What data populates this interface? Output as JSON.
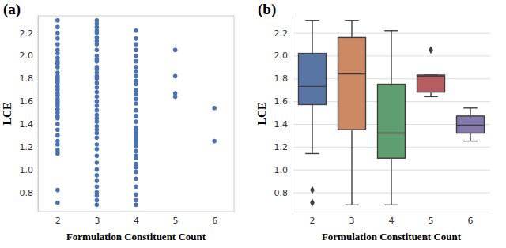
{
  "chart_data": [
    {
      "type": "strip",
      "title": "(a)",
      "x_label": "Formulation Constituent Count",
      "y_label": "LCE",
      "categories": [
        "2",
        "3",
        "4",
        "5",
        "6"
      ],
      "values": [
        [
          2.31,
          2.25,
          2.2,
          2.15,
          2.1,
          2.05,
          2.02,
          1.98,
          1.95,
          1.93,
          1.9,
          1.85,
          1.82,
          1.8,
          1.78,
          1.76,
          1.73,
          1.7,
          1.67,
          1.65,
          1.62,
          1.6,
          1.58,
          1.56,
          1.53,
          1.5,
          1.47,
          1.45,
          1.4,
          1.35,
          1.3,
          1.25,
          1.22,
          1.17,
          1.14,
          0.82,
          0.71
        ],
        [
          2.31,
          2.28,
          2.25,
          2.22,
          2.2,
          2.16,
          2.13,
          2.1,
          2.05,
          2.0,
          1.97,
          1.95,
          1.9,
          1.88,
          1.85,
          1.82,
          1.8,
          1.76,
          1.72,
          1.68,
          1.64,
          1.6,
          1.56,
          1.52,
          1.48,
          1.45,
          1.42,
          1.38,
          1.35,
          1.32,
          1.28,
          1.22,
          1.18,
          1.12,
          1.06,
          1.0,
          0.95,
          0.9,
          0.85,
          0.8,
          0.77,
          0.73,
          0.69
        ],
        [
          2.22,
          2.15,
          2.1,
          2.05,
          2.0,
          1.95,
          1.9,
          1.86,
          1.82,
          1.78,
          1.75,
          1.7,
          1.66,
          1.62,
          1.58,
          1.52,
          1.47,
          1.42,
          1.37,
          1.35,
          1.32,
          1.3,
          1.28,
          1.26,
          1.24,
          1.22,
          1.2,
          1.16,
          1.12,
          1.1,
          1.05,
          1.02,
          0.98,
          0.92,
          0.85,
          0.78,
          0.73,
          0.69
        ],
        [
          2.05,
          1.82,
          1.67,
          1.64
        ],
        [
          1.54,
          1.25
        ]
      ],
      "color": "#4c72b0",
      "ylim": [
        0.63,
        2.35
      ],
      "yticks": [
        0.8,
        {
          "value": 1,
          "label": "1.0"
        },
        1.2,
        1.4,
        1.6,
        1.8,
        {
          "value": 2,
          "label": "2.0"
        },
        2.2
      ],
      "grid": false
    },
    {
      "type": "box",
      "title": "(b)",
      "x_label": "Formulation Constituent Count",
      "y_label": "LCE",
      "categories": [
        "2",
        "3",
        "4",
        "5",
        "6"
      ],
      "whisker_low": [
        1.14,
        0.69,
        0.69,
        1.64,
        1.25
      ],
      "q1": [
        1.57,
        1.35,
        1.1,
        1.68,
        1.32
      ],
      "median": [
        1.73,
        1.84,
        1.32,
        1.82,
        1.39
      ],
      "q3": [
        2.02,
        2.16,
        1.75,
        1.83,
        1.47
      ],
      "whisker_high": [
        2.31,
        2.31,
        2.22,
        1.83,
        1.54
      ],
      "outliers": [
        [
          0.82,
          0.71
        ],
        [],
        [],
        [
          2.05
        ],
        []
      ],
      "colors": [
        "#5975a4",
        "#cc8963",
        "#5f9e6e",
        "#b55d60",
        "#857aab"
      ],
      "ylim": [
        0.63,
        2.35
      ],
      "yticks": [
        0.8,
        {
          "value": 1,
          "label": "1.0"
        },
        1.2,
        1.4,
        1.6,
        1.8,
        {
          "value": 2,
          "label": "2.0"
        },
        2.2
      ],
      "grid": true
    }
  ]
}
